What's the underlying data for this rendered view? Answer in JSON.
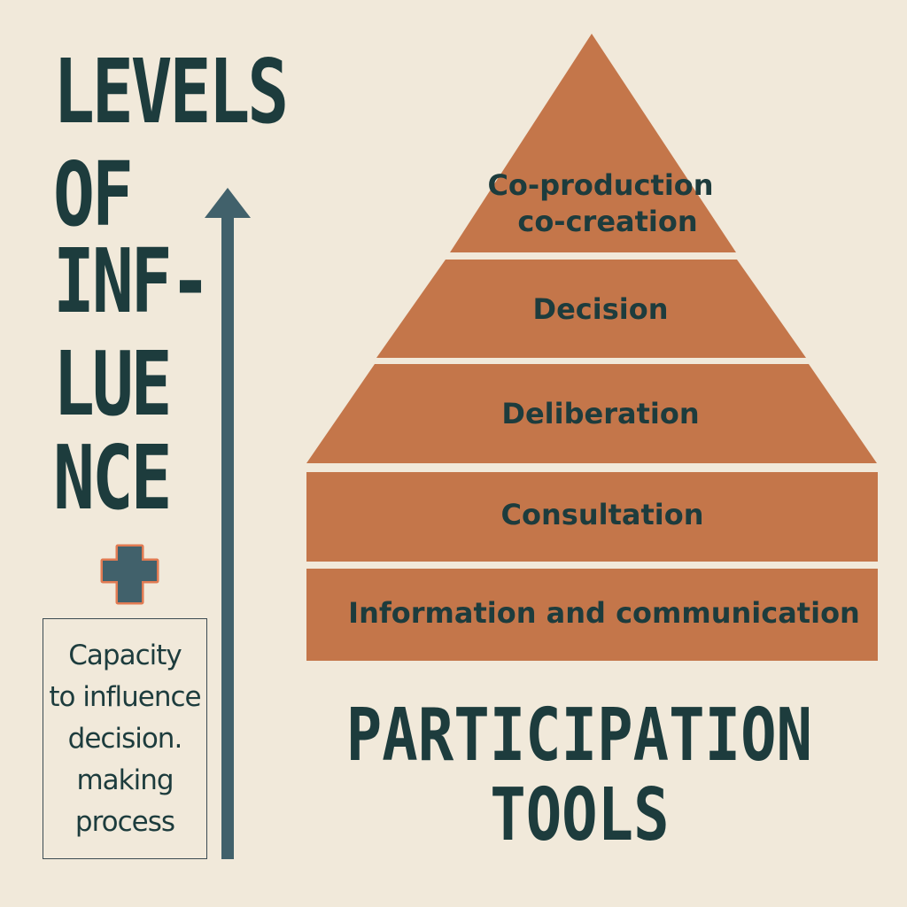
{
  "colors": {
    "background": "#f1e9da",
    "layer_fill": "#c4764a",
    "ink": "#1d3c3d",
    "arrow": "#41616b",
    "plus_outline": "#e07a52"
  },
  "title": {
    "lines": [
      "LEVELS",
      "OF",
      "INF-",
      "LUE",
      "NCE"
    ]
  },
  "plus_icon": "plus-icon",
  "capacity_box": {
    "lines": [
      "Capacity",
      "to influence",
      "decision.",
      "making",
      "process"
    ]
  },
  "pyramid": {
    "layers": [
      {
        "lines": [
          "Co-production",
          "co-creation"
        ]
      },
      {
        "lines": [
          "Decision"
        ]
      },
      {
        "lines": [
          "Deliberation"
        ]
      },
      {
        "lines": [
          "Consultation"
        ]
      },
      {
        "lines": [
          "Information and communication"
        ]
      }
    ]
  },
  "footer": {
    "lines": [
      "PARTICIPATION",
      "TOOLS"
    ]
  }
}
